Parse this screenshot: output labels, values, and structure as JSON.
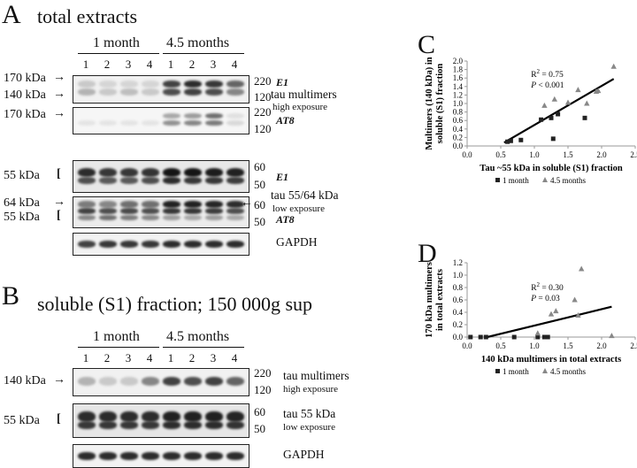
{
  "panelA": {
    "letter": "A",
    "title": "total extracts",
    "group1": "1 month",
    "group2": "4.5 months",
    "lanes": [
      "1",
      "2",
      "3",
      "4",
      "1",
      "2",
      "3",
      "4"
    ],
    "kda_170": "170 kDa",
    "kda_140": "140 kDa",
    "kda_170b": "170 kDa",
    "kda_55": "55 kDa",
    "kda_64": "64 kDa",
    "kda_55b": "55 kDa",
    "mw_220": "220",
    "mw_120": "120",
    "mw_220b": "220",
    "mw_120b": "120",
    "mw_60": "60",
    "mw_50": "50",
    "mw_60b": "60",
    "mw_50b": "50",
    "ab_e1": "E1",
    "ab_at8": "AT8",
    "ab_e1b": "E1",
    "ab_at8b": "AT8",
    "multimers": "tau multimers",
    "high": "high exposure",
    "tau5564": "tau 55/64 kDa",
    "low": "low exposure",
    "gapdh": "GAPDH"
  },
  "panelB": {
    "letter": "B",
    "title": "soluble (S1) fraction; 150 000g  sup",
    "group1": "1 month",
    "group2": "4.5 months",
    "lanes": [
      "1",
      "2",
      "3",
      "4",
      "1",
      "2",
      "3",
      "4"
    ],
    "kda_140": "140 kDa",
    "kda_55": "55 kDa",
    "mw_220": "220",
    "mw_120": "120",
    "mw_60": "60",
    "mw_50": "50",
    "multimers": "tau multimers",
    "high": "high exposure",
    "tau55": "tau 55 kDa",
    "low": "low exposure",
    "gapdh": "GAPDH"
  },
  "chart_data": [
    {
      "panel": "C",
      "type": "scatter",
      "xlabel": "Tau ~55 kDa in soluble (S1) fraction",
      "ylabel": "Multimers (140 kDa) in soluble (S1) fraction",
      "xlim": [
        0,
        2.5
      ],
      "ylim": [
        0,
        2.0
      ],
      "xticks": [
        "0.0",
        "0.5",
        "1.0",
        "1.5",
        "2.0",
        "2.5"
      ],
      "yticks": [
        "0.0",
        "0.2",
        "0.4",
        "0.6",
        "0.8",
        "1.0",
        "1.2",
        "1.4",
        "1.6",
        "1.8",
        "2.0"
      ],
      "r2_label": "R",
      "r2_value": " = 0.75",
      "p_label": "P",
      "p_value": " < 0.001",
      "series": [
        {
          "name": "1 month",
          "marker": "square",
          "x": [
            0.6,
            0.65,
            0.8,
            1.1,
            1.25,
            1.28,
            1.35,
            1.75
          ],
          "y": [
            0.1,
            0.12,
            0.14,
            0.62,
            0.66,
            0.17,
            0.75,
            0.66
          ]
        },
        {
          "name": "4.5 months",
          "marker": "triangle",
          "x": [
            1.15,
            1.3,
            1.5,
            1.65,
            1.78,
            1.92,
            1.95,
            2.18
          ],
          "y": [
            0.95,
            1.1,
            1.02,
            1.32,
            1.0,
            1.28,
            1.3,
            1.87
          ]
        }
      ],
      "fit": {
        "x": [
          0.55,
          2.18
        ],
        "y": [
          0.08,
          1.58
        ]
      },
      "legend": "bottom"
    },
    {
      "panel": "D",
      "type": "scatter",
      "xlabel": "140 kDa multimers in total extracts",
      "ylabel": "170 kDa multimers in total extracts",
      "xlim": [
        0,
        2.5
      ],
      "ylim": [
        0,
        1.2
      ],
      "xticks": [
        "0.0",
        "0.5",
        "1.0",
        "1.5",
        "2.0",
        "2.5"
      ],
      "yticks": [
        "0.0",
        "0.2",
        "0.4",
        "0.6",
        "0.8",
        "1.0",
        "1.2"
      ],
      "r2_label": "R",
      "r2_value": " = 0.30",
      "p_label": "P",
      "p_value": " = 0.03",
      "series": [
        {
          "name": "1 month",
          "marker": "square",
          "x": [
            0.05,
            0.2,
            0.28,
            0.7,
            1.05,
            1.15,
            1.2
          ],
          "y": [
            0.0,
            0.0,
            0.0,
            0.0,
            0.0,
            0.0,
            0.0
          ]
        },
        {
          "name": "4.5 months",
          "marker": "triangle",
          "x": [
            1.05,
            1.25,
            1.32,
            1.6,
            1.65,
            1.7,
            2.15
          ],
          "y": [
            0.06,
            0.37,
            0.42,
            0.6,
            0.35,
            1.1,
            0.02
          ]
        }
      ],
      "fit": {
        "x": [
          0.3,
          2.15
        ],
        "y": [
          0.0,
          0.49
        ]
      },
      "legend": "bottom"
    }
  ],
  "labels": {
    "C": "C",
    "D": "D",
    "sup2": "2"
  }
}
